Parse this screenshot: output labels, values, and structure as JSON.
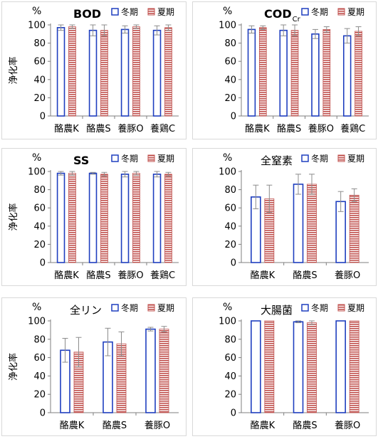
{
  "common": {
    "ylabel": "浄化率",
    "unit": "%",
    "legend": {
      "winter": "冬期",
      "summer": "夏期"
    },
    "colors": {
      "winter_stroke": "#1f3fbf",
      "summer_fill": "#c0504d",
      "summer_stripe": "#ffffff",
      "axis": "#7f7f7f",
      "error": "#8c8c8c"
    }
  },
  "chart_data": [
    {
      "type": "bar",
      "title": "BOD",
      "title_sub": "",
      "show_ylabel": true,
      "categories": [
        "酪農K",
        "酪農S",
        "養豚O",
        "養鶏C"
      ],
      "series": [
        {
          "name": "冬期",
          "values": [
            97,
            94,
            95,
            94
          ],
          "errors": [
            3,
            6,
            4,
            5
          ]
        },
        {
          "name": "夏期",
          "values": [
            98,
            94,
            98,
            97
          ],
          "errors": [
            2,
            6,
            2,
            3
          ]
        }
      ],
      "ylim": [
        0,
        100
      ],
      "yticks": [
        0,
        20,
        40,
        60,
        80,
        100
      ],
      "legend": "top-right"
    },
    {
      "type": "bar",
      "title": "COD",
      "title_sub": "Cr",
      "show_ylabel": false,
      "categories": [
        "酪農K",
        "酪農S",
        "養豚O",
        "養鶏C"
      ],
      "series": [
        {
          "name": "冬期",
          "values": [
            95,
            94,
            90,
            88
          ],
          "errors": [
            4,
            6,
            5,
            8
          ]
        },
        {
          "name": "夏期",
          "values": [
            97,
            94,
            95,
            93
          ],
          "errors": [
            2,
            6,
            3,
            5
          ]
        }
      ],
      "ylim": [
        0,
        100
      ],
      "yticks": [
        0,
        20,
        40,
        60,
        80,
        100
      ],
      "legend": "top-right"
    },
    {
      "type": "bar",
      "title": "SS",
      "title_sub": "",
      "show_ylabel": true,
      "categories": [
        "酪農K",
        "酪農S",
        "養豚O",
        "養鶏C"
      ],
      "series": [
        {
          "name": "冬期",
          "values": [
            98,
            98,
            97,
            97
          ],
          "errors": [
            2,
            1,
            3,
            3
          ]
        },
        {
          "name": "夏期",
          "values": [
            98,
            97,
            98,
            97
          ],
          "errors": [
            2,
            2,
            2,
            2
          ]
        }
      ],
      "ylim": [
        0,
        100
      ],
      "yticks": [
        0,
        20,
        40,
        60,
        80,
        100
      ],
      "legend": "top-right"
    },
    {
      "type": "bar",
      "title": "全窒素",
      "title_sub": "",
      "show_ylabel": false,
      "categories": [
        "酪農K",
        "酪農S",
        "養豚O"
      ],
      "series": [
        {
          "name": "冬期",
          "values": [
            72,
            86,
            67
          ],
          "errors": [
            13,
            11,
            11
          ]
        },
        {
          "name": "夏期",
          "values": [
            70,
            86,
            74
          ],
          "errors": [
            15,
            11,
            7
          ]
        }
      ],
      "ylim": [
        0,
        100
      ],
      "yticks": [
        0,
        20,
        40,
        60,
        80,
        100
      ],
      "legend": "top-right"
    },
    {
      "type": "bar",
      "title": "全リン",
      "title_sub": "",
      "show_ylabel": true,
      "categories": [
        "酪農K",
        "酪農S",
        "養豚O"
      ],
      "series": [
        {
          "name": "冬期",
          "values": [
            68,
            77,
            91
          ],
          "errors": [
            13,
            15,
            2
          ]
        },
        {
          "name": "夏期",
          "values": [
            66,
            75,
            91
          ],
          "errors": [
            16,
            13,
            3
          ]
        }
      ],
      "ylim": [
        0,
        100
      ],
      "yticks": [
        0,
        20,
        40,
        60,
        80,
        100
      ],
      "legend": "top-right"
    },
    {
      "type": "bar",
      "title": "大腸菌",
      "title_sub": "",
      "show_ylabel": false,
      "categories": [
        "酪農K",
        "酪農S",
        "養豚O"
      ],
      "series": [
        {
          "name": "冬期",
          "values": [
            100,
            99,
            100
          ],
          "errors": [
            0,
            1,
            0
          ]
        },
        {
          "name": "夏期",
          "values": [
            100,
            98,
            100
          ],
          "errors": [
            0,
            2,
            0
          ]
        }
      ],
      "ylim": [
        0,
        100
      ],
      "yticks": [
        0,
        20,
        40,
        60,
        80,
        100
      ],
      "legend": "top-right"
    }
  ]
}
